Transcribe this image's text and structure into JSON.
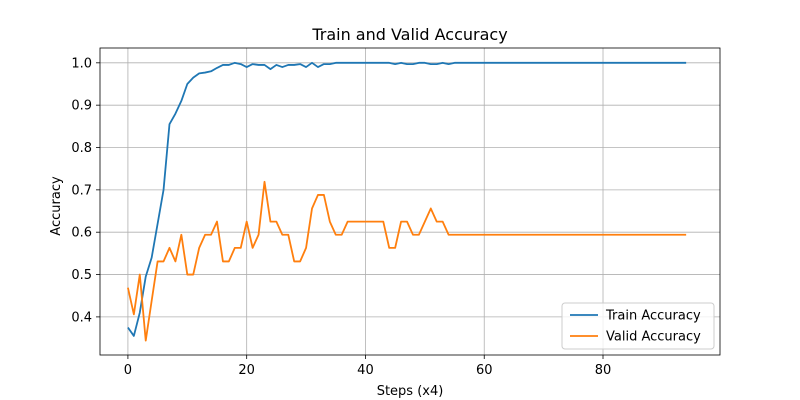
{
  "chart_data": {
    "type": "line",
    "title": "Train and Valid Accuracy",
    "xlabel": "Steps (x4)",
    "ylabel": "Accuracy",
    "xlim": [
      -4.7,
      99.7
    ],
    "ylim": [
      0.31,
      1.035
    ],
    "xticks": [
      0,
      20,
      40,
      60,
      80
    ],
    "yticks": [
      0.4,
      0.5,
      0.6,
      0.7,
      0.8,
      0.9,
      1.0
    ],
    "ytick_labels": [
      "0.4",
      "0.5",
      "0.6",
      "0.7",
      "0.8",
      "0.9",
      "1.0"
    ],
    "grid": true,
    "legend_position": "lower-right",
    "series": [
      {
        "name": "Train Accuracy",
        "color": "#1f77b4",
        "x": [
          0,
          1,
          2,
          3,
          4,
          5,
          6,
          7,
          8,
          9,
          10,
          11,
          12,
          13,
          14,
          15,
          16,
          17,
          18,
          19,
          20,
          21,
          22,
          23,
          24,
          25,
          26,
          27,
          28,
          29,
          30,
          31,
          32,
          33,
          34,
          35,
          36,
          37,
          38,
          39,
          40,
          41,
          42,
          43,
          44,
          45,
          46,
          47,
          48,
          49,
          50,
          51,
          52,
          53,
          54,
          55,
          56,
          57,
          58,
          59,
          60,
          61,
          62,
          63,
          64,
          65,
          66,
          67,
          68,
          69,
          70,
          71,
          72,
          73,
          74,
          75,
          76,
          77,
          78,
          79,
          80,
          81,
          82,
          83,
          84,
          85,
          86,
          87,
          88,
          89,
          90,
          91,
          92,
          93,
          94
        ],
        "values": [
          0.375,
          0.355,
          0.41,
          0.495,
          0.54,
          0.62,
          0.7,
          0.855,
          0.88,
          0.91,
          0.95,
          0.965,
          0.975,
          0.977,
          0.98,
          0.988,
          0.995,
          0.995,
          1.0,
          0.997,
          0.99,
          0.997,
          0.995,
          0.995,
          0.985,
          0.995,
          0.99,
          0.995,
          0.995,
          0.997,
          0.99,
          1.0,
          0.99,
          0.997,
          0.997,
          1.0,
          1.0,
          1.0,
          1.0,
          1.0,
          1.0,
          1.0,
          1.0,
          1.0,
          1.0,
          0.997,
          1.0,
          0.997,
          0.997,
          1.0,
          1.0,
          0.997,
          0.997,
          1.0,
          0.997,
          1.0,
          1.0,
          1.0,
          1.0,
          1.0,
          1.0,
          1.0,
          1.0,
          1.0,
          1.0,
          1.0,
          1.0,
          1.0,
          1.0,
          1.0,
          1.0,
          1.0,
          1.0,
          1.0,
          1.0,
          1.0,
          1.0,
          1.0,
          1.0,
          1.0,
          1.0,
          1.0,
          1.0,
          1.0,
          1.0,
          1.0,
          1.0,
          1.0,
          1.0,
          1.0,
          1.0,
          1.0,
          1.0,
          1.0,
          1.0
        ]
      },
      {
        "name": "Valid Accuracy",
        "color": "#ff7f0e",
        "x": [
          0,
          1,
          2,
          3,
          4,
          5,
          6,
          7,
          8,
          9,
          10,
          11,
          12,
          13,
          14,
          15,
          16,
          17,
          18,
          19,
          20,
          21,
          22,
          23,
          24,
          25,
          26,
          27,
          28,
          29,
          30,
          31,
          32,
          33,
          34,
          35,
          36,
          37,
          38,
          39,
          40,
          41,
          42,
          43,
          44,
          45,
          46,
          47,
          48,
          49,
          50,
          51,
          52,
          53,
          54,
          55,
          56,
          57,
          58,
          59,
          60,
          61,
          62,
          63,
          64,
          65,
          66,
          67,
          68,
          69,
          70,
          71,
          72,
          73,
          74,
          75,
          76,
          77,
          78,
          79,
          80,
          81,
          82,
          83,
          84,
          85,
          86,
          87,
          88,
          89,
          90,
          91,
          92,
          93,
          94
        ],
        "values": [
          0.469,
          0.406,
          0.5,
          0.344,
          0.438,
          0.531,
          0.531,
          0.563,
          0.531,
          0.594,
          0.5,
          0.5,
          0.563,
          0.594,
          0.594,
          0.625,
          0.531,
          0.531,
          0.563,
          0.563,
          0.625,
          0.563,
          0.594,
          0.719,
          0.625,
          0.625,
          0.594,
          0.594,
          0.531,
          0.531,
          0.563,
          0.656,
          0.688,
          0.688,
          0.625,
          0.594,
          0.594,
          0.625,
          0.625,
          0.625,
          0.625,
          0.625,
          0.625,
          0.625,
          0.563,
          0.563,
          0.625,
          0.625,
          0.594,
          0.594,
          0.625,
          0.656,
          0.625,
          0.625,
          0.594,
          0.594,
          0.594,
          0.594,
          0.594,
          0.594,
          0.594,
          0.594,
          0.594,
          0.594,
          0.594,
          0.594,
          0.594,
          0.594,
          0.594,
          0.594,
          0.594,
          0.594,
          0.594,
          0.594,
          0.594,
          0.594,
          0.594,
          0.594,
          0.594,
          0.594,
          0.594,
          0.594,
          0.594,
          0.594,
          0.594,
          0.594,
          0.594,
          0.594,
          0.594,
          0.594,
          0.594,
          0.594,
          0.594,
          0.594,
          0.594
        ]
      }
    ]
  }
}
